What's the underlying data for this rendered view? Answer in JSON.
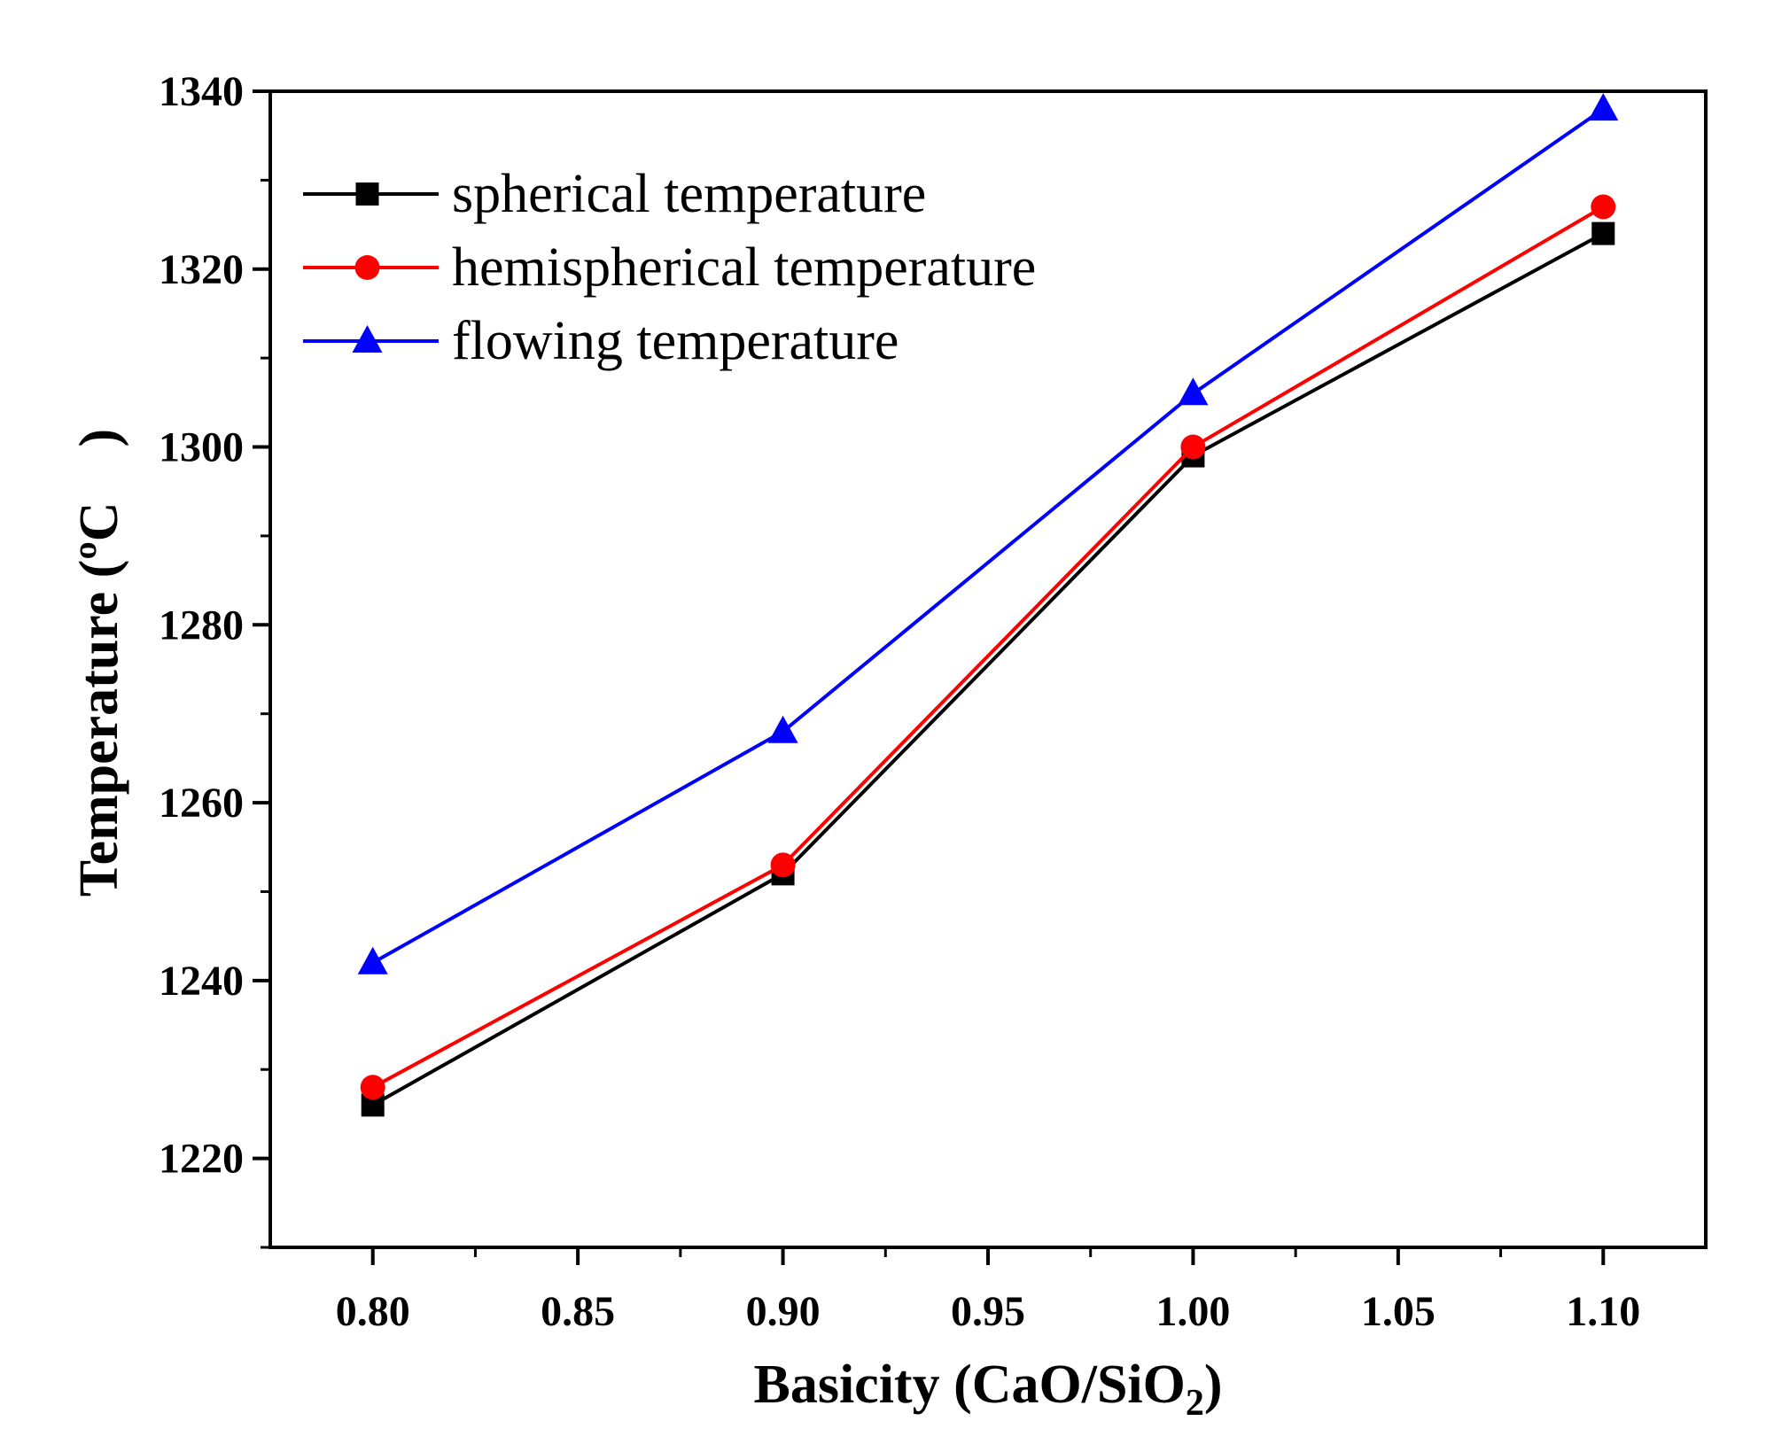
{
  "chart_data": {
    "type": "line",
    "xlabel": {
      "main": "Basicity (CaO/SiO",
      "sub": "2",
      "tail": ")"
    },
    "ylabel": "Temperature (ºC　)",
    "xlim": [
      0.775,
      1.125
    ],
    "ylim": [
      1210,
      1340
    ],
    "x_ticks": [
      0.8,
      0.85,
      0.9,
      0.95,
      1.0,
      1.05,
      1.1
    ],
    "x_tick_labels": [
      "0.80",
      "0.85",
      "0.90",
      "0.95",
      "1.00",
      "1.05",
      "1.10"
    ],
    "y_ticks": [
      1220,
      1240,
      1260,
      1280,
      1300,
      1320,
      1340
    ],
    "y_tick_labels": [
      "1220",
      "1240",
      "1260",
      "1280",
      "1300",
      "1320",
      "1340"
    ],
    "x": [
      0.8,
      0.9,
      1.0,
      1.1
    ],
    "series": [
      {
        "name": "spherical temperature",
        "values": [
          1226,
          1252,
          1299,
          1324
        ],
        "color": "#000000",
        "marker": "square"
      },
      {
        "name": "hemispherical temperature",
        "values": [
          1228,
          1253,
          1300,
          1327
        ],
        "color": "#ff0000",
        "marker": "circle"
      },
      {
        "name": "flowing temperature",
        "values": [
          1242,
          1268,
          1306,
          1338
        ],
        "color": "#0000ff",
        "marker": "triangle"
      }
    ],
    "grid": false,
    "legend": "top-left"
  }
}
